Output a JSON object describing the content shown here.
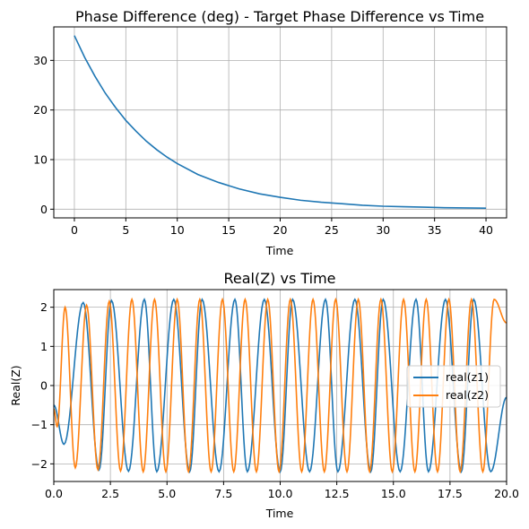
{
  "colors": {
    "blue": "#1f77b4",
    "orange": "#ff7f0e",
    "grid": "#b0b0b0",
    "axes": "#000000"
  },
  "chart_data": [
    {
      "type": "line",
      "title": "Phase Difference (deg) - Target Phase Difference vs Time",
      "xlabel": "Time",
      "ylabel": "",
      "xlim": [
        -2,
        42
      ],
      "ylim": [
        -1.75,
        36.75
      ],
      "xticks": [
        0,
        5,
        10,
        15,
        20,
        25,
        30,
        35,
        40
      ],
      "yticks": [
        0,
        10,
        20,
        30
      ],
      "grid": true,
      "legend": "none",
      "series": [
        {
          "x": [
            0,
            1,
            2,
            3,
            4,
            5,
            6,
            7,
            8,
            9,
            10,
            12,
            14,
            16,
            18,
            20,
            22,
            24,
            26,
            28,
            30,
            32,
            34,
            36,
            38,
            40
          ],
          "y": [
            35.0,
            30.6,
            26.8,
            23.4,
            20.5,
            17.9,
            15.7,
            13.7,
            12.0,
            10.5,
            9.2,
            7.0,
            5.4,
            4.1,
            3.1,
            2.4,
            1.8,
            1.4,
            1.1,
            0.8,
            0.6,
            0.5,
            0.4,
            0.3,
            0.25,
            0.2
          ]
        }
      ]
    },
    {
      "type": "line",
      "title": "Real(Z) vs Time",
      "xlabel": "Time",
      "ylabel": "Real(Z)",
      "xlim": [
        0,
        20
      ],
      "ylim": [
        -2.45,
        2.45
      ],
      "xticks": [
        "0.0",
        "2.5",
        "5.0",
        "7.5",
        "10.0",
        "12.5",
        "15.0",
        "17.5",
        "20.0"
      ],
      "yticks": [
        -2,
        -1,
        0,
        1,
        2
      ],
      "grid": true,
      "legend": "center-right",
      "series": [
        {
          "name": "real(z1)",
          "x": [
            0.0,
            0.45,
            1.3,
            2.0,
            2.55,
            3.3,
            4.0,
            4.55,
            5.3,
            6.0,
            6.55,
            7.3,
            8.0,
            8.55,
            9.3,
            10.0,
            10.55,
            11.3,
            12.0,
            12.55,
            13.3,
            14.0,
            14.55,
            15.3,
            16.0,
            16.55,
            17.3,
            18.0,
            18.55,
            19.3,
            20.0
          ],
          "y": [
            -0.5,
            -1.5,
            2.12,
            -2.15,
            2.17,
            -2.19,
            2.2,
            -2.2,
            2.2,
            -2.2,
            2.2,
            -2.2,
            2.2,
            -2.2,
            2.2,
            -2.2,
            2.2,
            -2.2,
            2.2,
            -2.2,
            2.2,
            -2.2,
            2.2,
            -2.2,
            2.2,
            -2.2,
            2.2,
            -2.2,
            2.2,
            -2.2,
            -0.3
          ]
        },
        {
          "name": "real(z2)",
          "x": [
            0.0,
            0.15,
            0.5,
            0.95,
            1.45,
            1.95,
            2.45,
            2.95,
            3.45,
            3.95,
            4.45,
            4.95,
            5.45,
            5.95,
            6.45,
            6.95,
            7.45,
            7.95,
            8.45,
            8.95,
            9.45,
            9.95,
            10.45,
            10.95,
            11.45,
            11.95,
            12.45,
            12.95,
            13.45,
            13.95,
            14.45,
            14.95,
            15.45,
            15.95,
            16.45,
            16.95,
            17.45,
            17.95,
            18.45,
            18.95,
            19.45,
            20.0
          ],
          "y": [
            -0.6,
            -1.05,
            2.0,
            -2.1,
            2.05,
            -2.15,
            2.15,
            -2.18,
            2.2,
            -2.2,
            2.2,
            -2.2,
            2.2,
            -2.2,
            2.2,
            -2.2,
            2.2,
            -2.2,
            2.2,
            -2.2,
            2.2,
            -2.2,
            2.2,
            -2.2,
            2.2,
            -2.2,
            2.2,
            -2.2,
            2.2,
            -2.2,
            2.2,
            -2.2,
            2.2,
            -2.2,
            2.2,
            -2.2,
            2.2,
            -2.2,
            2.2,
            -2.2,
            2.2,
            1.6
          ]
        }
      ]
    }
  ]
}
